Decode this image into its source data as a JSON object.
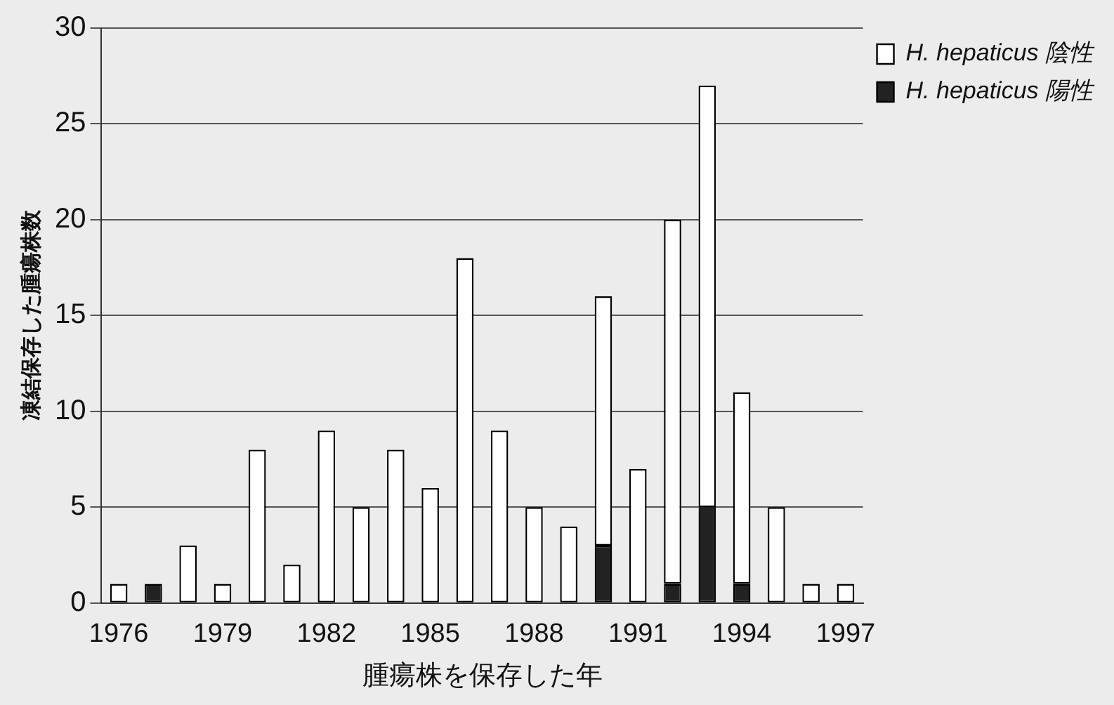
{
  "chart_data": {
    "type": "bar",
    "stacked": true,
    "xlabel": "腫瘍株を保存した年",
    "ylabel": "凍結保存した腫瘍株数",
    "categories": [
      "1976",
      null,
      null,
      "1979",
      null,
      null,
      "1982",
      null,
      null,
      "1985",
      null,
      null,
      "1988",
      null,
      null,
      "1991",
      null,
      null,
      "1994",
      null,
      null,
      "1997"
    ],
    "series": [
      {
        "name": "H. hepaticus 陽性",
        "color": "#222222",
        "values": [
          0,
          1,
          0,
          0,
          0,
          0,
          0,
          0,
          0,
          0,
          0,
          0,
          0,
          0,
          3,
          0,
          1,
          5,
          1,
          0,
          0,
          0
        ]
      },
      {
        "name": "H. hepaticus 陰性",
        "color": "#ffffff",
        "values": [
          1,
          0,
          3,
          1,
          8,
          2,
          9,
          5,
          8,
          6,
          18,
          9,
          5,
          4,
          13,
          7,
          19,
          22,
          10,
          5,
          1,
          1
        ]
      }
    ],
    "ylim": [
      0,
      30
    ],
    "yticks": [
      0,
      5,
      10,
      15,
      20,
      25,
      30
    ],
    "grid": "y",
    "legend": "top right"
  }
}
